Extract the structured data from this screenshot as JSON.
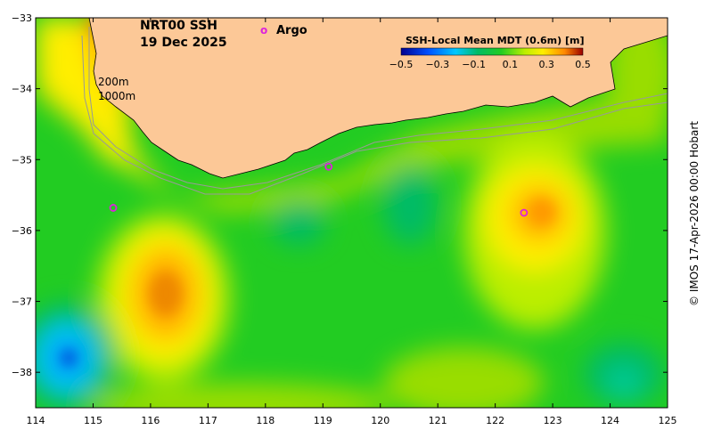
{
  "header": {
    "product": "NRT00 SSH",
    "date": "19 Dec 2025"
  },
  "legend": {
    "argo_marker": "o",
    "argo_label": "Argo",
    "colorbar_title": "SSH-Local Mean MDT (0.6m) [m]",
    "colorbar_ticks": [
      "−0.5",
      "−0.3",
      "−0.1",
      "0.1",
      "0.3",
      "0.5"
    ],
    "colorbar_tick_values": [
      -0.5,
      -0.3,
      -0.1,
      0.1,
      0.3,
      0.5
    ],
    "colorbar_range": [
      -0.5,
      0.5
    ]
  },
  "isobath_labels": [
    "200m",
    "1000m"
  ],
  "copyright": "© IMOS 17-Apr-2026 00:00 Hobart",
  "colors": {
    "land": "#fcc897",
    "ocean_base": "#22cc22",
    "argo": "#dd22dd"
  },
  "axes": {
    "lon_ticks": [
      "114",
      "115",
      "116",
      "117",
      "118",
      "119",
      "120",
      "121",
      "122",
      "123",
      "124",
      "125"
    ],
    "lat_ticks": [
      "−33",
      "−34",
      "−35",
      "−36",
      "−37",
      "−38"
    ],
    "lon_range": [
      114,
      125
    ],
    "lat_range": [
      -38.5,
      -33
    ]
  },
  "argo_floats": [
    {
      "lon": 115.35,
      "lat": -35.68
    },
    {
      "lon": 119.1,
      "lat": -35.1
    },
    {
      "lon": 122.5,
      "lat": -35.75
    }
  ],
  "features": [
    {
      "name": "warm-eddy-west",
      "lon": 116.3,
      "lat": -36.9,
      "sla": 0.45
    },
    {
      "name": "warm-eddy-east",
      "lon": 122.7,
      "lat": -35.8,
      "sla": 0.35
    },
    {
      "name": "cold-eddy-southwest",
      "lon": 114.6,
      "lat": -37.8,
      "sla": -0.3
    },
    {
      "name": "cool-patch-central",
      "lon": 120.7,
      "lat": -35.8,
      "sla": -0.05
    },
    {
      "name": "cool-patch-southeast",
      "lon": 124.0,
      "lat": -38.2,
      "sla": -0.08
    },
    {
      "name": "warm-coast-northwest",
      "lon": 115.0,
      "lat": -33.3,
      "sla": 0.45
    }
  ]
}
